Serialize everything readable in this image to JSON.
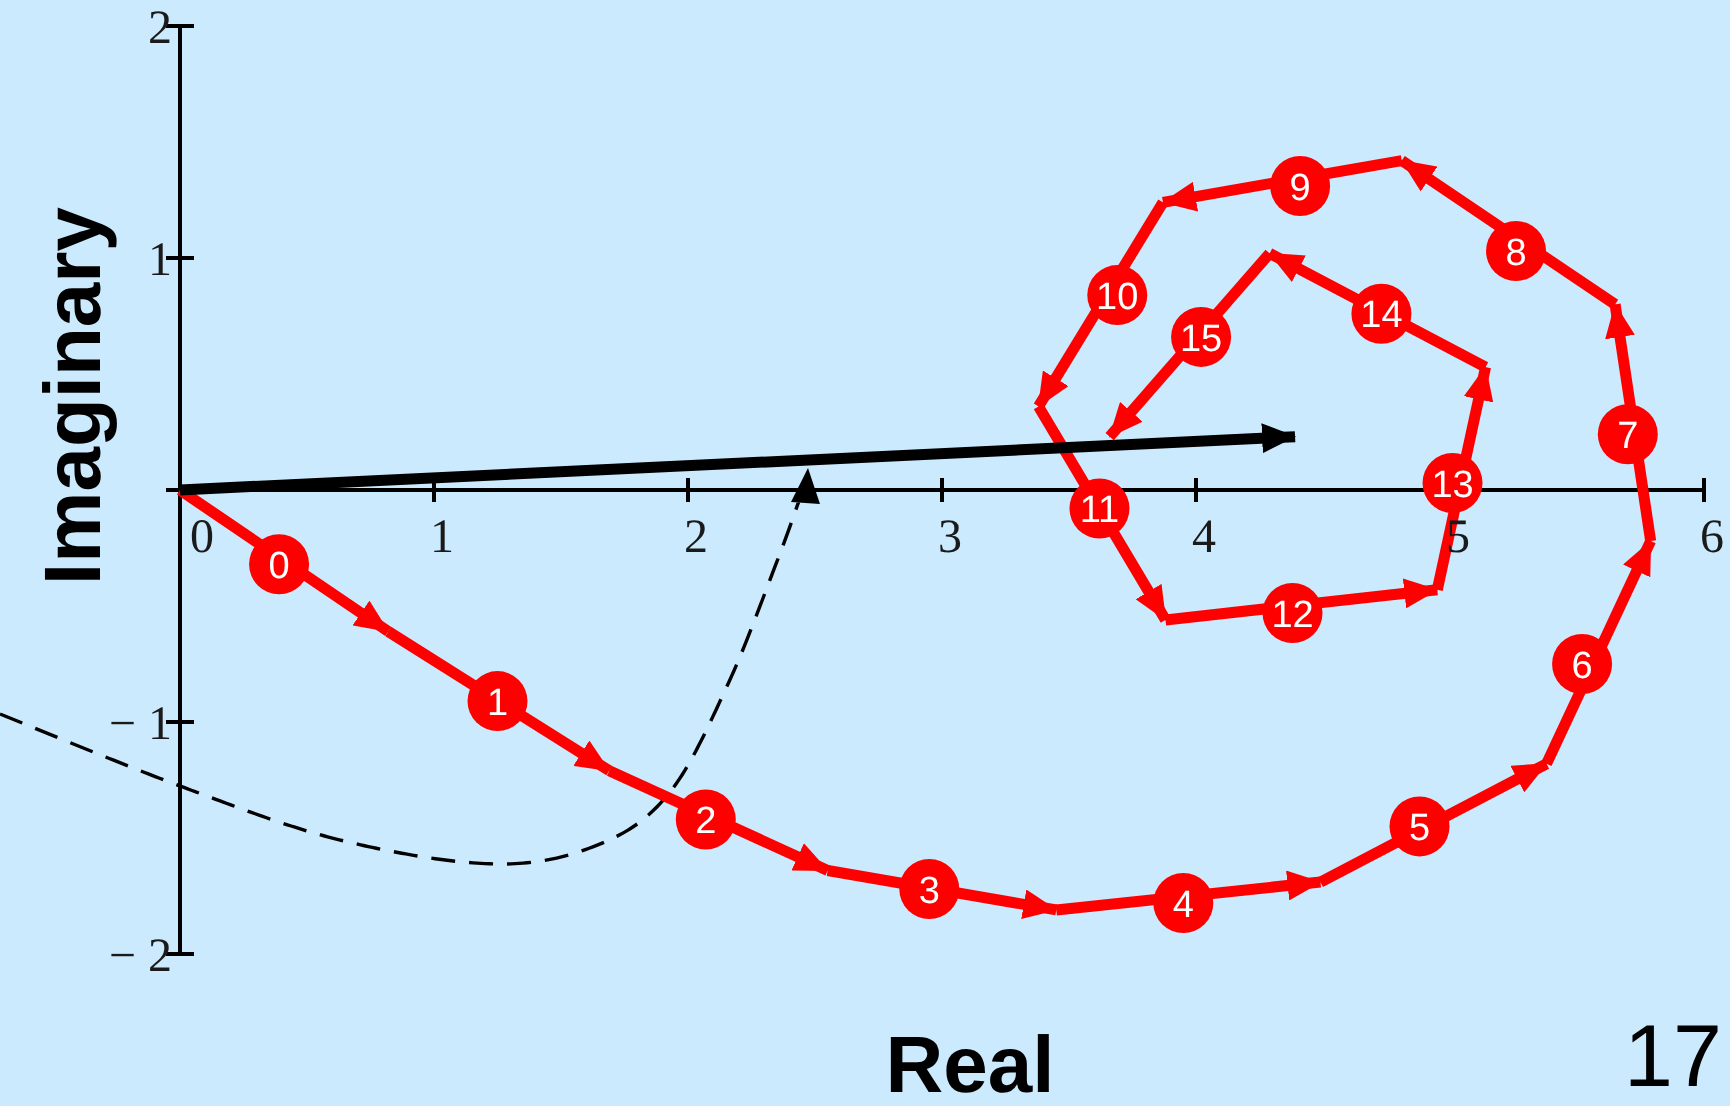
{
  "chart_data": {
    "type": "line",
    "xlabel": "Real",
    "ylabel": "Imaginary",
    "xlim": [
      0,
      6
    ],
    "ylim": [
      -2,
      2
    ],
    "xticks": [
      0,
      1,
      2,
      3,
      4,
      5,
      6
    ],
    "yticks": [
      {
        "value": -2,
        "label": "− 2"
      },
      {
        "value": -1,
        "label": "− 1"
      },
      {
        "value": 0,
        "label": null
      },
      1,
      2
    ],
    "series": [
      {
        "color": "#ff0000",
        "x": [
          0,
          0.82
        ],
        "values": [
          0,
          -0.61
        ]
      },
      {
        "color": "#ff0000",
        "x": [
          0.82,
          1.69
        ],
        "values": [
          -0.61,
          -1.21
        ]
      },
      {
        "color": "#ff0000",
        "x": [
          1.69,
          2.55
        ],
        "values": [
          -1.21,
          -1.64
        ]
      },
      {
        "color": "#ff0000",
        "x": [
          2.55,
          3.45
        ],
        "values": [
          -1.64,
          -1.81
        ]
      },
      {
        "color": "#ff0000",
        "x": [
          3.45,
          4.49
        ],
        "values": [
          -1.81,
          -1.69
        ]
      },
      {
        "color": "#ff0000",
        "x": [
          4.49,
          5.38
        ],
        "values": [
          -1.69,
          -1.18
        ]
      },
      {
        "color": "#ff0000",
        "x": [
          5.38,
          5.79
        ],
        "values": [
          -1.18,
          -0.22
        ]
      },
      {
        "color": "#ff0000",
        "x": [
          5.79,
          5.65
        ],
        "values": [
          -0.22,
          0.8
        ]
      },
      {
        "color": "#ff0000",
        "x": [
          5.65,
          4.81
        ],
        "values": [
          0.8,
          1.42
        ]
      },
      {
        "color": "#ff0000",
        "x": [
          4.81,
          3.87
        ],
        "values": [
          1.42,
          1.24
        ]
      },
      {
        "color": "#ff0000",
        "x": [
          3.87,
          3.38
        ],
        "values": [
          1.24,
          0.36
        ]
      },
      {
        "color": "#ff0000",
        "x": [
          3.38,
          3.88
        ],
        "values": [
          0.36,
          -0.56
        ]
      },
      {
        "color": "#ff0000",
        "x": [
          3.88,
          4.95
        ],
        "values": [
          -0.56,
          -0.43
        ]
      },
      {
        "color": "#ff0000",
        "x": [
          4.95,
          5.14
        ],
        "values": [
          -0.43,
          0.53
        ]
      },
      {
        "color": "#ff0000",
        "x": [
          5.14,
          4.29
        ],
        "values": [
          0.53,
          1.02
        ]
      },
      {
        "color": "#ff0000",
        "x": [
          4.29,
          3.66
        ],
        "values": [
          1.02,
          0.23
        ]
      },
      {
        "color": "#000000",
        "x": [
          0,
          4.39
        ],
        "values": [
          0,
          0.23
        ]
      }
    ],
    "annotations": [
      {
        "text": "0",
        "x": 0.39,
        "y": -0.32
      },
      {
        "text": "1",
        "x": 1.25,
        "y": -0.91
      },
      {
        "text": "2",
        "x": 2.07,
        "y": -1.42
      },
      {
        "text": "3",
        "x": 2.95,
        "y": -1.72
      },
      {
        "text": "4",
        "x": 3.95,
        "y": -1.78
      },
      {
        "text": "5",
        "x": 4.88,
        "y": -1.45
      },
      {
        "text": "6",
        "x": 5.52,
        "y": -0.75
      },
      {
        "text": "7",
        "x": 5.7,
        "y": 0.24
      },
      {
        "text": "8",
        "x": 5.26,
        "y": 1.03
      },
      {
        "text": "9",
        "x": 4.41,
        "y": 1.31
      },
      {
        "text": "10",
        "x": 3.69,
        "y": 0.84
      },
      {
        "text": "11",
        "x": 3.62,
        "y": -0.08
      },
      {
        "text": "12",
        "x": 4.38,
        "y": -0.53
      },
      {
        "text": "13",
        "x": 5.01,
        "y": 0.03
      },
      {
        "text": "14",
        "x": 4.73,
        "y": 0.76
      },
      {
        "text": "15",
        "x": 4.02,
        "y": 0.66
      },
      "17"
    ]
  }
}
